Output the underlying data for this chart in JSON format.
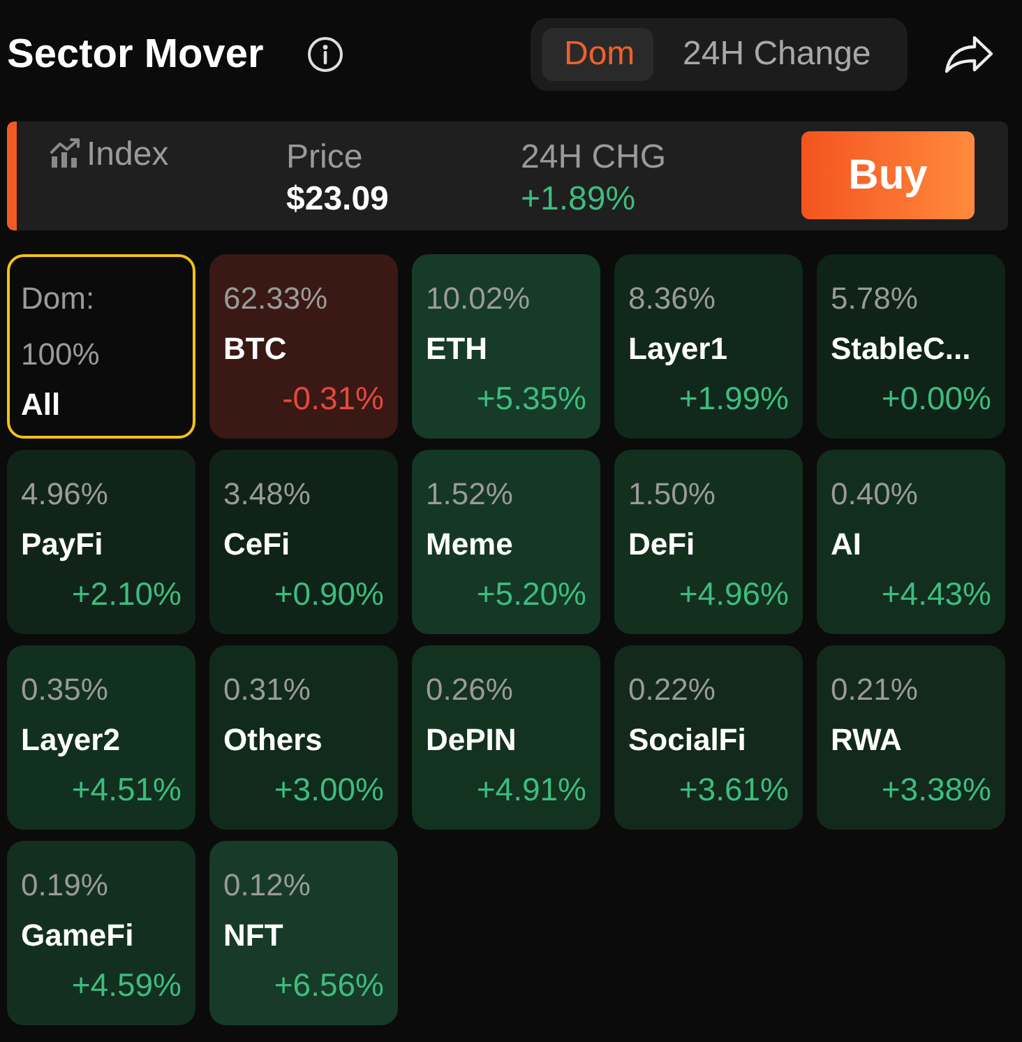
{
  "chart_data": {
    "type": "other",
    "title": "Sector Mover",
    "annotations": [
      "Dom",
      "24H Change",
      "Index",
      "Price",
      "$23.09",
      "24H CHG",
      "+1.89%",
      "Buy",
      {
        "text": "Dom:",
        "x": "All"
      }
    ],
    "categories": [
      "All",
      "BTC",
      "ETH",
      "Layer1",
      "StableC...",
      "PayFi",
      "CeFi",
      "Meme",
      "DeFi",
      "AI",
      "Layer2",
      "Others",
      "DePIN",
      "SocialFi",
      "RWA",
      "GameFi",
      "NFT"
    ],
    "series": [
      {
        "values": [
          100,
          62.33,
          10.02,
          8.36,
          5.78,
          4.96,
          3.48,
          1.52,
          1.5,
          0.4,
          0.35,
          0.31,
          0.26,
          0.22,
          0.21,
          0.19,
          0.12
        ],
        "value_labels": [
          "100%",
          "62.33%",
          "10.02%",
          "8.36%",
          "5.78%",
          "4.96%",
          "3.48%",
          "1.52%",
          "1.50%",
          "0.40%",
          "0.35%",
          "0.31%",
          "0.26%",
          "0.22%",
          "0.21%",
          "0.19%",
          "0.12%"
        ],
        "colors": [
          "#0b0b0b",
          "#3a1914",
          "#163b28",
          "#11281c",
          "#0f2318",
          "#10241a",
          "#0f2318",
          "#153726",
          "#13301f",
          "#122e1f",
          "#12301f",
          "#102a1c",
          "#133220",
          "#12291c",
          "#12291c",
          "#132f20",
          "#173b28"
        ]
      },
      {
        "values": [
          null,
          -0.31,
          5.35,
          1.99,
          0,
          2.1,
          0.9,
          5.2,
          4.96,
          4.43,
          4.51,
          3,
          4.91,
          3.61,
          3.38,
          4.59,
          6.56
        ],
        "value_labels": [
          null,
          "-0.31%",
          "+5.35%",
          "+1.99%",
          "+0.00%",
          "+2.10%",
          "+0.90%",
          "+5.20%",
          "+4.96%",
          "+4.43%",
          "+4.51%",
          "+3.00%",
          "+4.91%",
          "+3.61%",
          "+3.38%",
          "+4.59%",
          "+6.56%"
        ],
        "colors": [
          null,
          "#e5483e",
          "#3dbd7d",
          "#3dbd7d",
          "#3dbd7d",
          "#3dbd7d",
          "#3dbd7d",
          "#3dbd7d",
          "#3dbd7d",
          "#3dbd7d",
          "#3dbd7d",
          "#3dbd7d",
          "#3dbd7d",
          "#3dbd7d",
          "#3dbd7d",
          "#3dbd7d",
          "#3dbd7d"
        ]
      }
    ]
  }
}
